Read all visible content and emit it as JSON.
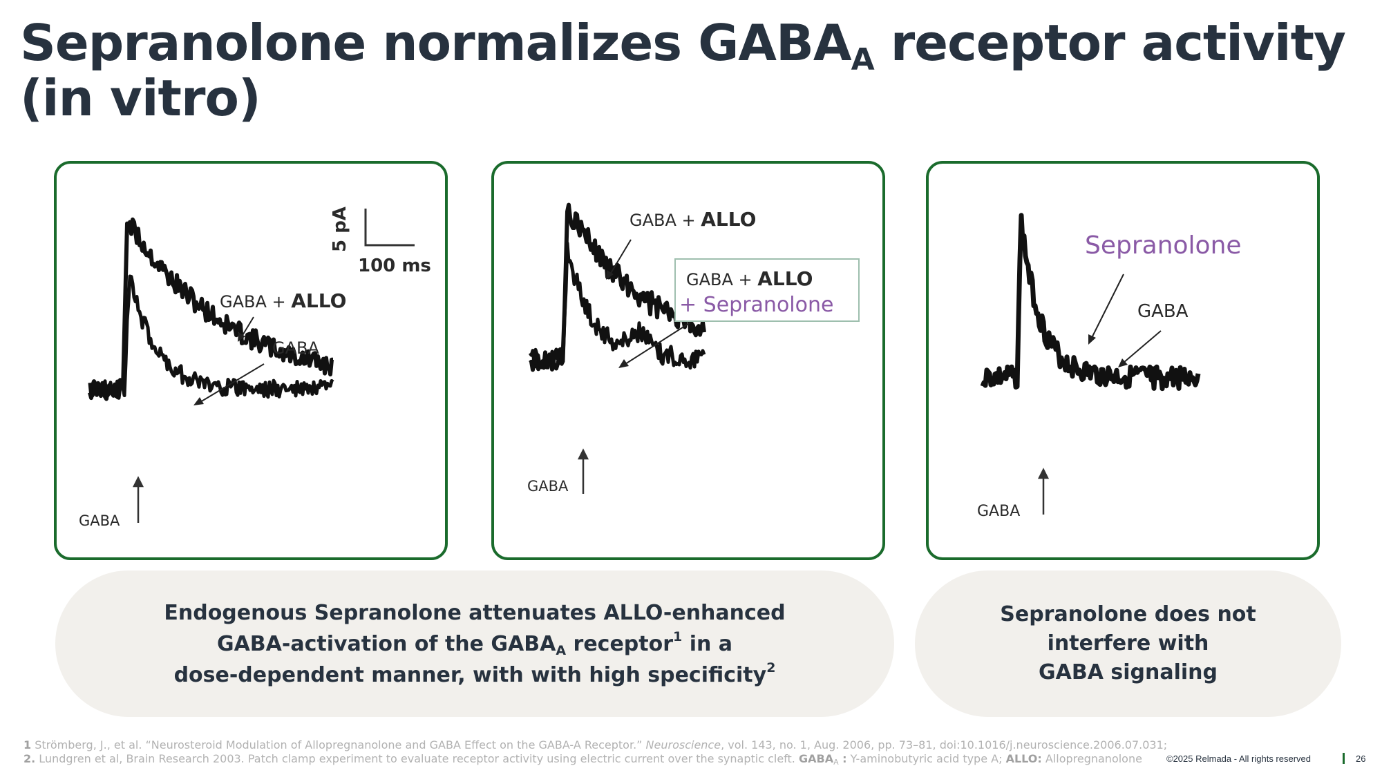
{
  "title": {
    "part1": "Sepranolone normalizes GABA",
    "sub": "A",
    "part2": " receptor activity (in vitro)"
  },
  "panel1": {
    "scale_y": "5 pA",
    "scale_x": "100 ms",
    "label_allo_prefix": "GABA + ",
    "label_allo_bold": "ALLO",
    "label_gaba": "GABA",
    "label_arrow_gaba": "GABA"
  },
  "panel2": {
    "label_allo_prefix": "GABA + ",
    "label_allo_bold": "ALLO",
    "box_line1_prefix": "GABA + ",
    "box_line1_bold": "ALLO",
    "box_line2": "+ Sepranolone",
    "label_arrow_gaba": "GABA"
  },
  "panel3": {
    "label_sep": "Sepranolone",
    "label_gaba": "GABA",
    "label_arrow_gaba": "GABA"
  },
  "pill_left": {
    "line1": "Endogenous Sepranolone attenuates ALLO-enhanced",
    "line2_a": "GABA-activation of the GABA",
    "line2_sub": "A",
    "line2_b": " receptor",
    "line2_sup": "1",
    "line2_c": " in a",
    "line3": "dose-dependent manner, with with high specificity",
    "line3_sup": "2"
  },
  "pill_right": {
    "line1": "Sepranolone does not",
    "line2": "interfere with",
    "line3": "GABA signaling"
  },
  "footnotes": {
    "f1_num": "1",
    "f1_text": " Strömberg, J., et al. “Neurosteroid Modulation of Allopregnanolone and GABA Effect on the GABA-A Receptor.” ",
    "f1_journal": "Neuroscience",
    "f1_rest": ", vol. 143, no. 1, Aug. 2006, pp. 73–81, doi:10.1016/j.neuroscience.2006.07.031;",
    "f2_num": "2.",
    "f2_text": " Lundgren et al, Brain Research 2003. Patch clamp experiment to evaluate receptor activity using electric current over the synaptic cleft. ",
    "f2_gaba": "GABA",
    "f2_gaba_sub": "A",
    "f2_colon": " :",
    "f2_def1": " Y-aminobutyric acid type A; ",
    "f2_allo": "ALLO:",
    "f2_def2": " Allopregnanolone"
  },
  "copyright": "©2025 Relmada - All rights reserved",
  "page_number": "26",
  "colors": {
    "accent_green": "#1a6b2c",
    "title": "#27323f",
    "pill_bg": "#f2f0ec",
    "sepranolone_purple": "#8a5aa6"
  }
}
